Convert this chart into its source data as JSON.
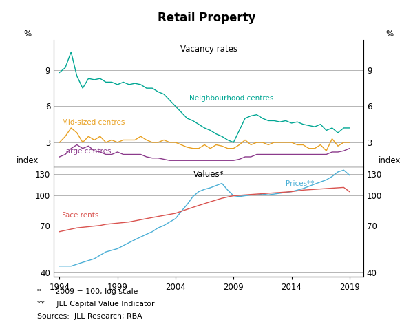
{
  "title": "Retail Property",
  "top_panel": {
    "title": "Vacancy rates",
    "ylabel_left": "%",
    "ylabel_right": "%",
    "yticks": [
      3,
      6,
      9
    ],
    "ylim": [
      1.0,
      11.5
    ],
    "neighbourhood": {
      "label": "Neighbourhood centres",
      "color": "#00A693",
      "x": [
        1994,
        1994.5,
        1995,
        1995.5,
        1996,
        1996.5,
        1997,
        1997.5,
        1998,
        1998.5,
        1999,
        1999.5,
        2000,
        2000.5,
        2001,
        2001.5,
        2002,
        2002.5,
        2003,
        2003.5,
        2004,
        2004.5,
        2005,
        2005.5,
        2006,
        2006.5,
        2007,
        2007.5,
        2008,
        2008.5,
        2009,
        2009.5,
        2010,
        2010.5,
        2011,
        2011.5,
        2012,
        2012.5,
        2013,
        2013.5,
        2014,
        2014.5,
        2015,
        2015.5,
        2016,
        2016.5,
        2017,
        2017.5,
        2018,
        2018.5,
        2019
      ],
      "y": [
        8.8,
        9.2,
        10.5,
        8.5,
        7.5,
        8.3,
        8.2,
        8.3,
        8.0,
        8.0,
        7.8,
        8.0,
        7.8,
        7.9,
        7.8,
        7.5,
        7.5,
        7.2,
        7.0,
        6.5,
        6.0,
        5.5,
        5.0,
        4.8,
        4.5,
        4.2,
        4.0,
        3.7,
        3.5,
        3.2,
        3.0,
        4.0,
        5.0,
        5.2,
        5.3,
        5.0,
        4.8,
        4.8,
        4.7,
        4.8,
        4.6,
        4.7,
        4.5,
        4.4,
        4.3,
        4.5,
        4.0,
        4.2,
        3.8,
        4.2,
        4.2
      ]
    },
    "mid_sized": {
      "label": "Mid-sized centres",
      "color": "#E8A020",
      "x": [
        1994,
        1994.5,
        1995,
        1995.5,
        1996,
        1996.5,
        1997,
        1997.5,
        1998,
        1998.5,
        1999,
        1999.5,
        2000,
        2000.5,
        2001,
        2001.5,
        2002,
        2002.5,
        2003,
        2003.5,
        2004,
        2004.5,
        2005,
        2005.5,
        2006,
        2006.5,
        2007,
        2007.5,
        2008,
        2008.5,
        2009,
        2009.5,
        2010,
        2010.5,
        2011,
        2011.5,
        2012,
        2012.5,
        2013,
        2013.5,
        2014,
        2014.5,
        2015,
        2015.5,
        2016,
        2016.5,
        2017,
        2017.5,
        2018,
        2018.5,
        2019
      ],
      "y": [
        3.0,
        3.5,
        4.2,
        3.8,
        3.0,
        3.5,
        3.2,
        3.5,
        3.0,
        3.2,
        3.0,
        3.2,
        3.2,
        3.2,
        3.5,
        3.2,
        3.0,
        3.0,
        3.2,
        3.0,
        3.0,
        2.8,
        2.6,
        2.5,
        2.5,
        2.8,
        2.5,
        2.8,
        2.7,
        2.5,
        2.5,
        2.8,
        3.2,
        2.8,
        3.0,
        3.0,
        2.8,
        3.0,
        3.0,
        3.0,
        3.0,
        2.8,
        2.8,
        2.5,
        2.5,
        2.8,
        2.3,
        3.3,
        2.7,
        3.0,
        3.0
      ]
    },
    "large": {
      "label": "Large centres",
      "color": "#8B3A8B",
      "x": [
        1994,
        1994.5,
        1995,
        1995.5,
        1996,
        1996.5,
        1997,
        1997.5,
        1998,
        1998.5,
        1999,
        1999.5,
        2000,
        2000.5,
        2001,
        2001.5,
        2002,
        2002.5,
        2003,
        2003.5,
        2004,
        2004.5,
        2005,
        2005.5,
        2006,
        2006.5,
        2007,
        2007.5,
        2008,
        2008.5,
        2009,
        2009.5,
        2010,
        2010.5,
        2011,
        2011.5,
        2012,
        2012.5,
        2013,
        2013.5,
        2014,
        2014.5,
        2015,
        2015.5,
        2016,
        2016.5,
        2017,
        2017.5,
        2018,
        2018.5,
        2019
      ],
      "y": [
        1.8,
        2.0,
        2.5,
        2.8,
        2.5,
        2.7,
        2.3,
        2.2,
        2.0,
        2.0,
        2.2,
        2.0,
        2.0,
        2.0,
        2.0,
        1.8,
        1.7,
        1.7,
        1.6,
        1.5,
        1.5,
        1.5,
        1.5,
        1.5,
        1.5,
        1.5,
        1.5,
        1.5,
        1.5,
        1.5,
        1.5,
        1.6,
        1.8,
        1.8,
        2.0,
        2.0,
        2.0,
        2.0,
        2.0,
        2.0,
        2.0,
        2.0,
        2.0,
        2.0,
        2.0,
        2.0,
        2.0,
        2.2,
        2.2,
        2.3,
        2.5
      ]
    }
  },
  "bottom_panel": {
    "title": "Values*",
    "ylabel_left": "index",
    "ylabel_right": "index",
    "yticks": [
      40,
      70,
      100,
      130
    ],
    "ylim": [
      38,
      142
    ],
    "prices": {
      "label": "Prices**",
      "color": "#4BAFD6",
      "x": [
        1994,
        1994.5,
        1995,
        1995.5,
        1996,
        1996.5,
        1997,
        1997.5,
        1998,
        1998.5,
        1999,
        1999.5,
        2000,
        2000.5,
        2001,
        2001.5,
        2002,
        2002.5,
        2003,
        2003.5,
        2004,
        2004.5,
        2005,
        2005.5,
        2006,
        2006.5,
        2007,
        2007.5,
        2008,
        2008.5,
        2009,
        2009.5,
        2010,
        2010.5,
        2011,
        2011.5,
        2012,
        2012.5,
        2013,
        2013.5,
        2014,
        2014.5,
        2015,
        2015.5,
        2016,
        2016.5,
        2017,
        2017.5,
        2018,
        2018.5,
        2019
      ],
      "y": [
        43,
        43,
        43,
        44,
        45,
        46,
        47,
        49,
        51,
        52,
        53,
        55,
        57,
        59,
        61,
        63,
        65,
        68,
        70,
        73,
        76,
        83,
        90,
        99,
        105,
        108,
        110,
        113,
        116,
        107,
        100,
        99,
        100,
        101,
        101,
        102,
        101,
        102,
        103,
        104,
        105,
        107,
        109,
        112,
        115,
        118,
        121,
        126,
        133,
        136,
        128
      ]
    },
    "face_rents": {
      "label": "Face rents",
      "color": "#D9534F",
      "x": [
        1994,
        1994.5,
        1995,
        1995.5,
        1996,
        1996.5,
        1997,
        1997.5,
        1998,
        1998.5,
        1999,
        1999.5,
        2000,
        2000.5,
        2001,
        2001.5,
        2002,
        2002.5,
        2003,
        2003.5,
        2004,
        2004.5,
        2005,
        2005.5,
        2006,
        2006.5,
        2007,
        2007.5,
        2008,
        2008.5,
        2009,
        2009.5,
        2010,
        2010.5,
        2011,
        2011.5,
        2012,
        2012.5,
        2013,
        2013.5,
        2014,
        2014.5,
        2015,
        2015.5,
        2016,
        2016.5,
        2017,
        2017.5,
        2018,
        2018.5,
        2019
      ],
      "y": [
        65,
        66,
        67,
        68,
        68.5,
        69,
        69.5,
        70,
        71,
        71.5,
        72,
        72.5,
        73,
        74,
        75,
        76,
        77,
        78,
        79,
        80,
        81,
        83,
        85,
        87,
        89,
        91,
        93,
        95,
        97,
        98.5,
        100,
        100.5,
        101,
        101.5,
        102,
        102.5,
        103,
        103.5,
        104,
        104.5,
        105,
        106,
        107,
        107.5,
        108,
        108.5,
        109,
        109.5,
        110,
        110.5,
        105
      ]
    }
  },
  "xlim": [
    1993.5,
    2020.2
  ],
  "xticks": [
    1994,
    1999,
    2004,
    2009,
    2014,
    2019
  ],
  "footnote1": "*      2009 = 100, log scale",
  "footnote2": "**     JLL Capital Value Indicator",
  "footnote3": "Sources:  JLL Research; RBA",
  "bg_color": "#FFFFFF",
  "grid_color": "#AAAAAA"
}
